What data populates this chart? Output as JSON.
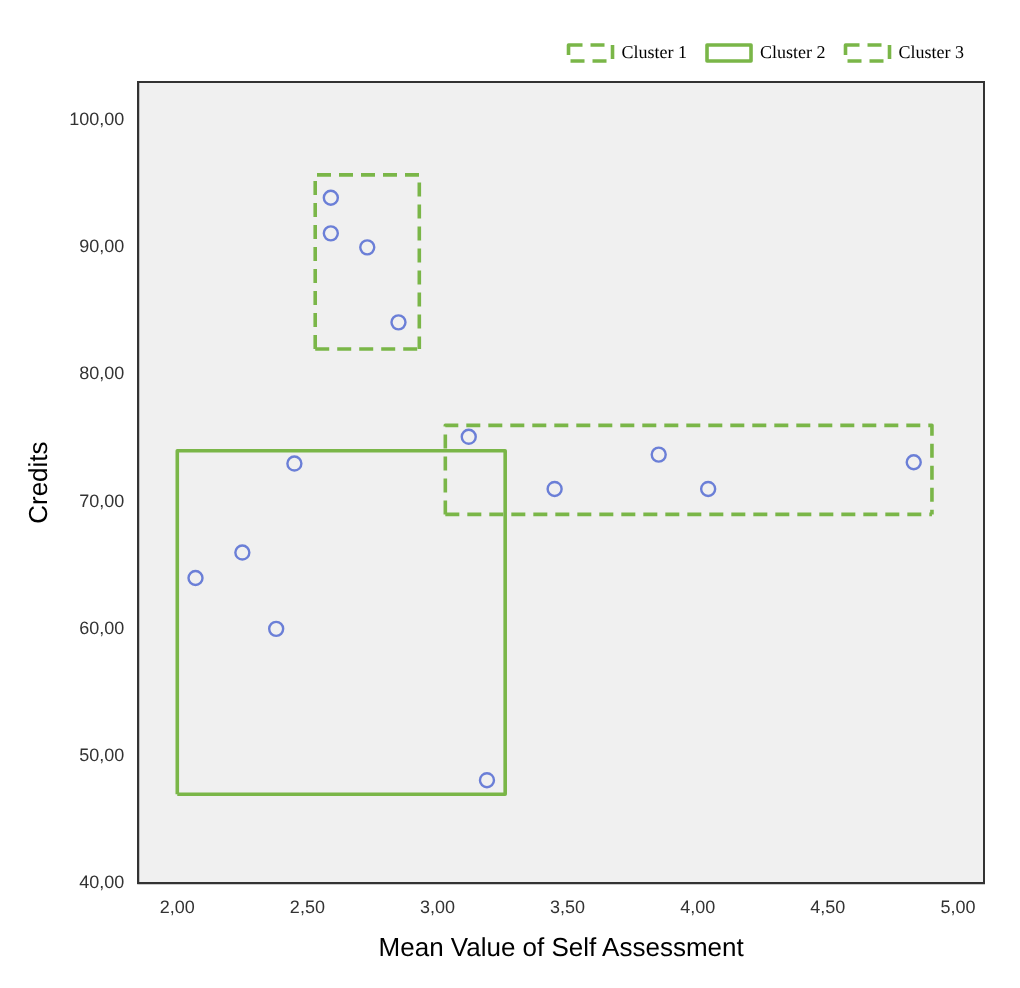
{
  "chart_data": {
    "type": "scatter",
    "xlabel": "Mean Value of Self Assessment",
    "ylabel": "Credits",
    "xlim": [
      1.85,
      5.1
    ],
    "ylim": [
      40,
      103
    ],
    "xticks": [
      {
        "value": 2,
        "label": "2,00"
      },
      {
        "value": 2.5,
        "label": "2,50"
      },
      {
        "value": 3,
        "label": "3,00"
      },
      {
        "value": 3.5,
        "label": "3,50"
      },
      {
        "value": 4,
        "label": "4,00"
      },
      {
        "value": 4.5,
        "label": "4,50"
      },
      {
        "value": 5,
        "label": "5,00"
      }
    ],
    "yticks": [
      {
        "value": 40,
        "label": "40,00"
      },
      {
        "value": 50,
        "label": "50,00"
      },
      {
        "value": 60,
        "label": "60,00"
      },
      {
        "value": 70,
        "label": "70,00"
      },
      {
        "value": 80,
        "label": "80,00"
      },
      {
        "value": 90,
        "label": "90,00"
      },
      {
        "value": 100,
        "label": "100,00"
      }
    ],
    "grid": false,
    "legend": "top right",
    "marker": "circle",
    "series": [
      {
        "color": "#6b7fd7",
        "x": [
          2.59,
          2.59,
          2.73,
          2.85,
          3.12,
          3.45,
          3.85,
          4.04,
          4.83,
          2.45,
          2.07,
          2.25,
          2.38,
          3.19
        ],
        "values": [
          93.9,
          91.1,
          90,
          84.1,
          75.1,
          71,
          73.7,
          71,
          73.1,
          73,
          64,
          66,
          60,
          48.1
        ]
      },
      {
        "type": "line",
        "name": "Cluster 1",
        "color": "#7ab648",
        "line_style": "dashed",
        "marker": "none",
        "x": [
          2.53,
          2.53,
          2.93,
          2.93
        ],
        "values": [
          82,
          95.7,
          95.7,
          82
        ]
      },
      {
        "type": "line",
        "name": "Cluster 2",
        "color": "#7ab648",
        "line_style": "solid",
        "marker": "none",
        "x": [
          2,
          2,
          3.26,
          3.26
        ],
        "values": [
          47,
          74,
          74,
          47
        ]
      },
      {
        "type": "line",
        "name": "Cluster 3",
        "color": "#7ab648",
        "line_style": "dashed",
        "marker": "none",
        "x": [
          3.03,
          3.03,
          4.9,
          4.9
        ],
        "values": [
          69,
          76,
          76,
          69
        ]
      },
      {
        "type": "line",
        "color": "#7ab648",
        "line_style": "dashed",
        "marker": "none",
        "x": [
          2.53,
          2.93
        ],
        "values": [
          82,
          82
        ]
      },
      {
        "type": "line",
        "color": "#7ab648",
        "line_style": "solid",
        "marker": "none",
        "x": [
          2,
          3.26
        ],
        "values": [
          47,
          47
        ]
      },
      {
        "type": "line",
        "color": "#7ab648",
        "line_style": "dashed",
        "marker": "none",
        "x": [
          3.03,
          4.9
        ],
        "values": [
          69,
          69
        ]
      }
    ]
  }
}
